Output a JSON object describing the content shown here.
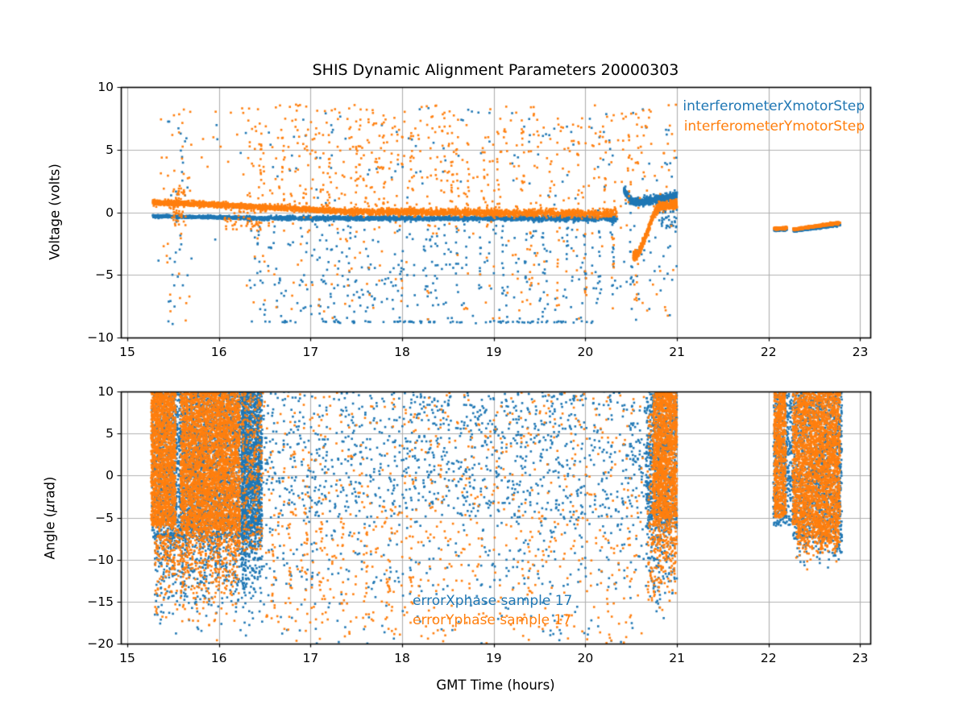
{
  "figure": {
    "title": "SHIS Dynamic Alignment Parameters 20000303",
    "xlabel": "GMT Time (hours)",
    "background": "#ffffff"
  },
  "colors": {
    "series_blue": "#1f77b4",
    "series_orange": "#ff7f0e",
    "grid": "#b0b0b0",
    "spine": "#000000",
    "text": "#000000"
  },
  "chart_data": [
    {
      "type": "scatter",
      "ylabel": "Voltage (volts)",
      "xlim": [
        14.93,
        23.11
      ],
      "ylim": [
        -10,
        10
      ],
      "xticks": [
        15,
        16,
        17,
        18,
        19,
        20,
        21,
        22,
        23
      ],
      "xticklabels": [
        "15",
        "16",
        "17",
        "18",
        "19",
        "20",
        "21",
        "22",
        "23"
      ],
      "yticks": [
        10,
        5,
        0,
        -5,
        -10
      ],
      "yticklabels": [
        "10",
        "5",
        "0",
        "−5",
        "−10"
      ],
      "grid": true,
      "legend_position": "upper right (text annotations)",
      "series": [
        {
          "name": "interferometerXmotorStep",
          "color": "#1f77b4",
          "clusters": [
            {
              "kind": "band",
              "x": [
                15.28,
                16.3
              ],
              "yA": -0.32,
              "yB": -0.46,
              "sigma": 0.05,
              "n": 800
            },
            {
              "kind": "band",
              "x": [
                16.3,
                19.2
              ],
              "yA": -0.46,
              "yB": -0.5,
              "sigma": 0.08,
              "n": 1500
            },
            {
              "kind": "band",
              "x": [
                19.2,
                20.35
              ],
              "yA": -0.5,
              "yB": -0.52,
              "sigma": 0.11,
              "n": 480
            },
            {
              "kind": "path",
              "pts": [
                [
                  20.42,
                  1.85
                ],
                [
                  20.5,
                  0.9
                ],
                [
                  20.58,
                  0.78
                ],
                [
                  20.7,
                  0.95
                ],
                [
                  20.85,
                  1.1
                ],
                [
                  21.0,
                  1.35
                ]
              ],
              "sigma": 0.15,
              "n": 560
            },
            {
              "kind": "uniform",
              "x": [
                20.8,
                21.0
              ],
              "y": [
                -1.3,
                0.9
              ],
              "n": 45
            },
            {
              "kind": "band",
              "x": [
                22.06,
                22.2
              ],
              "yA": -1.42,
              "yB": -1.38,
              "sigma": 0.04,
              "n": 150
            },
            {
              "kind": "band",
              "x": [
                22.27,
                22.78
              ],
              "yA": -1.5,
              "yB": -1.0,
              "sigma": 0.04,
              "n": 420
            },
            {
              "kind": "uniform",
              "x": [
                16.3,
                18.7
              ],
              "y": [
                -8.6,
                -0.9
              ],
              "n": 230
            },
            {
              "kind": "uniform",
              "x": [
                18.7,
                21.0
              ],
              "y": [
                -8.6,
                -0.9
              ],
              "n": 120
            },
            {
              "kind": "columns",
              "xs": [
                18.6,
                18.85,
                19.1,
                19.35,
                19.55,
                19.8,
                20.0,
                20.15,
                20.3,
                20.5
              ],
              "halfw": 0.013,
              "y": [
                -6.5,
                0.3
              ],
              "nPer": 10
            },
            {
              "kind": "band",
              "x": [
                16.35,
                20.1
              ],
              "yA": -8.75,
              "yB": -8.75,
              "sigma": 0.04,
              "n": 90
            },
            {
              "kind": "uniform",
              "x": [
                16.4,
                21.0
              ],
              "y": [
                0.6,
                8.5
              ],
              "n": 110
            },
            {
              "kind": "uniform",
              "x": [
                15.42,
                15.66
              ],
              "y": [
                -9.0,
                8.3
              ],
              "n": 30
            },
            {
              "kind": "uniform",
              "x": [
                15.3,
                16.3
              ],
              "y": [
                -7.5,
                8.2
              ],
              "n": 14
            }
          ]
        },
        {
          "name": "interferometerYmotorStep",
          "color": "#ff7f0e",
          "clusters": [
            {
              "kind": "band",
              "x": [
                15.28,
                16.0
              ],
              "yA": 0.78,
              "yB": 0.6,
              "sigma": 0.09,
              "n": 850
            },
            {
              "kind": "band",
              "x": [
                16.0,
                17.3
              ],
              "yA": 0.6,
              "yB": 0.1,
              "sigma": 0.1,
              "n": 850
            },
            {
              "kind": "band",
              "x": [
                17.3,
                19.2
              ],
              "yA": 0.08,
              "yB": -0.05,
              "sigma": 0.13,
              "n": 1050
            },
            {
              "kind": "band",
              "x": [
                19.2,
                20.35
              ],
              "yA": -0.05,
              "yB": -0.1,
              "sigma": 0.16,
              "n": 500
            },
            {
              "kind": "uniform",
              "x": [
                15.5,
                15.64
              ],
              "y": [
                -1.1,
                1.9
              ],
              "n": 55
            },
            {
              "kind": "uniform",
              "x": [
                16.05,
                16.55
              ],
              "y": [
                -1.4,
                0.4
              ],
              "n": 60
            },
            {
              "kind": "path",
              "pts": [
                [
                  20.52,
                  -3.4
                ],
                [
                  20.56,
                  -3.55
                ],
                [
                  20.62,
                  -2.6
                ],
                [
                  20.68,
                  -1.5
                ],
                [
                  20.74,
                  -0.3
                ],
                [
                  20.8,
                  0.45
                ],
                [
                  20.9,
                  0.58
                ],
                [
                  21.0,
                  0.62
                ]
              ],
              "sigma": 0.18,
              "n": 540
            },
            {
              "kind": "band",
              "x": [
                22.06,
                22.2
              ],
              "yA": -1.3,
              "yB": -1.26,
              "sigma": 0.05,
              "n": 160
            },
            {
              "kind": "band",
              "x": [
                22.27,
                22.78
              ],
              "yA": -1.36,
              "yB": -0.84,
              "sigma": 0.05,
              "n": 450
            },
            {
              "kind": "uniform",
              "x": [
                16.3,
                18.7
              ],
              "y": [
                0.3,
                8.6
              ],
              "n": 300
            },
            {
              "kind": "uniform",
              "x": [
                18.7,
                21.0
              ],
              "y": [
                0.3,
                8.6
              ],
              "n": 170
            },
            {
              "kind": "columns",
              "xs": [
                16.45,
                16.7,
                16.95,
                17.2,
                17.5,
                17.8,
                18.1,
                18.55,
                18.72,
                18.9,
                19.05,
                19.32,
                19.62,
                19.92,
                20.22,
                20.47
              ],
              "halfw": 0.013,
              "y": [
                0.0,
                6.5
              ],
              "nPer": 9
            },
            {
              "kind": "columns",
              "xs": [
                19.4,
                19.7,
                20.0,
                20.3,
                20.55
              ],
              "halfw": 0.013,
              "y": [
                -7.5,
                -1.5
              ],
              "nPer": 8
            },
            {
              "kind": "uniform",
              "x": [
                16.3,
                21.0
              ],
              "y": [
                -8.8,
                0.2
              ],
              "n": 150
            },
            {
              "kind": "uniform",
              "x": [
                15.35,
                15.7
              ],
              "y": [
                -9.0,
                8.5
              ],
              "n": 40
            },
            {
              "kind": "uniform",
              "x": [
                15.75,
                16.3
              ],
              "y": [
                3.0,
                8.5
              ],
              "n": 12
            }
          ]
        }
      ]
    },
    {
      "type": "scatter",
      "ylabel": "Angle (μrad)",
      "ylabel_parts": [
        "Angle (",
        "μ",
        "rad)"
      ],
      "xlim": [
        14.93,
        23.11
      ],
      "ylim": [
        -20,
        10
      ],
      "xticks": [
        15,
        16,
        17,
        18,
        19,
        20,
        21,
        22,
        23
      ],
      "xticklabels": [
        "15",
        "16",
        "17",
        "18",
        "19",
        "20",
        "21",
        "22",
        "23"
      ],
      "yticks": [
        10,
        5,
        0,
        -5,
        -10,
        -15,
        -20
      ],
      "yticklabels": [
        "10",
        "5",
        "0",
        "−5",
        "−10",
        "−15",
        "−20"
      ],
      "grid": true,
      "legend_position": "lower center (text annotations)",
      "series": [
        {
          "name": "errorXphase sample 17",
          "color": "#1f77b4",
          "clusters": [
            {
              "kind": "uniform",
              "x": [
                15.27,
                16.3
              ],
              "y": [
                -7.5,
                10
              ],
              "n": 3200
            },
            {
              "kind": "gauss_down",
              "x": [
                15.3,
                16.3
              ],
              "yTop": -7.0,
              "scale": 4.5,
              "n": 520
            },
            {
              "kind": "uniform",
              "x": [
                16.25,
                16.47
              ],
              "y": [
                -7.0,
                10
              ],
              "n": 1400
            },
            {
              "kind": "gauss_down",
              "x": [
                16.25,
                16.47
              ],
              "yTop": -7.0,
              "scale": 4.5,
              "n": 160
            },
            {
              "kind": "uniform",
              "x": [
                16.47,
                20.65
              ],
              "y": [
                -5.0,
                10
              ],
              "n": 1150
            },
            {
              "kind": "uniform",
              "x": [
                16.47,
                20.65
              ],
              "y": [
                -13.0,
                -5.0
              ],
              "n": 230
            },
            {
              "kind": "uniform",
              "x": [
                16.47,
                20.65
              ],
              "y": [
                -20.0,
                -13.0
              ],
              "n": 90
            },
            {
              "kind": "uniform",
              "x": [
                20.66,
                21.0
              ],
              "y": [
                -6.5,
                10
              ],
              "n": 820
            },
            {
              "kind": "gauss_down",
              "x": [
                20.66,
                21.0
              ],
              "yTop": -6.5,
              "scale": 4.0,
              "n": 130
            },
            {
              "kind": "uniform",
              "x": [
                22.05,
                22.2
              ],
              "y": [
                -6.0,
                10
              ],
              "n": 360
            },
            {
              "kind": "uniform",
              "x": [
                22.2,
                22.26
              ],
              "y": [
                -6.0,
                10
              ],
              "n": 120
            },
            {
              "kind": "uniform",
              "x": [
                22.26,
                22.8
              ],
              "y": [
                -7.5,
                10
              ],
              "n": 1250
            },
            {
              "kind": "gauss_down",
              "x": [
                22.3,
                22.8
              ],
              "yTop": -7.0,
              "scale": 1.5,
              "n": 80
            }
          ]
        },
        {
          "name": "errorYphase sample 17",
          "color": "#ff7f0e",
          "clusters": [
            {
              "kind": "uniform",
              "x": [
                15.26,
                15.53
              ],
              "y": [
                -6.0,
                10
              ],
              "n": 1700
            },
            {
              "kind": "uniform",
              "x": [
                15.58,
                16.23
              ],
              "y": [
                -6.5,
                10
              ],
              "n": 3600
            },
            {
              "kind": "gauss_down",
              "x": [
                15.3,
                16.23
              ],
              "yTop": -6.0,
              "scale": 4.5,
              "n": 650
            },
            {
              "kind": "uniform",
              "x": [
                16.25,
                16.47
              ],
              "y": [
                -9.0,
                10
              ],
              "n": 260
            },
            {
              "kind": "uniform",
              "x": [
                16.47,
                20.65
              ],
              "y": [
                -20.0,
                10
              ],
              "n": 720
            },
            {
              "kind": "columns",
              "xs": [
                16.6,
                16.78,
                16.95,
                17.12,
                17.35,
                17.6,
                17.85,
                18.1
              ],
              "halfw": 0.02,
              "y": [
                -17,
                -5
              ],
              "nPer": 14
            },
            {
              "kind": "uniform",
              "x": [
                20.68,
                20.76
              ],
              "y": [
                -15.0,
                8.0
              ],
              "n": 110
            },
            {
              "kind": "uniform",
              "x": [
                20.74,
                21.0
              ],
              "y": [
                -5.0,
                10
              ],
              "n": 1450
            },
            {
              "kind": "gauss_down",
              "x": [
                20.74,
                21.0
              ],
              "yTop": -5.0,
              "scale": 4.0,
              "n": 220
            },
            {
              "kind": "uniform",
              "x": [
                22.06,
                22.19
              ],
              "y": [
                -5.0,
                10
              ],
              "n": 680
            },
            {
              "kind": "uniform",
              "x": [
                22.26,
                22.78
              ],
              "y": [
                -5.8,
                10
              ],
              "n": 2500
            },
            {
              "kind": "gauss_down",
              "x": [
                22.3,
                22.78
              ],
              "yTop": -5.8,
              "scale": 1.8,
              "n": 260
            },
            {
              "kind": "uniform",
              "x": [
                22.5,
                22.76
              ],
              "y": [
                -8.5,
                -5.5
              ],
              "n": 90
            }
          ]
        }
      ]
    }
  ]
}
